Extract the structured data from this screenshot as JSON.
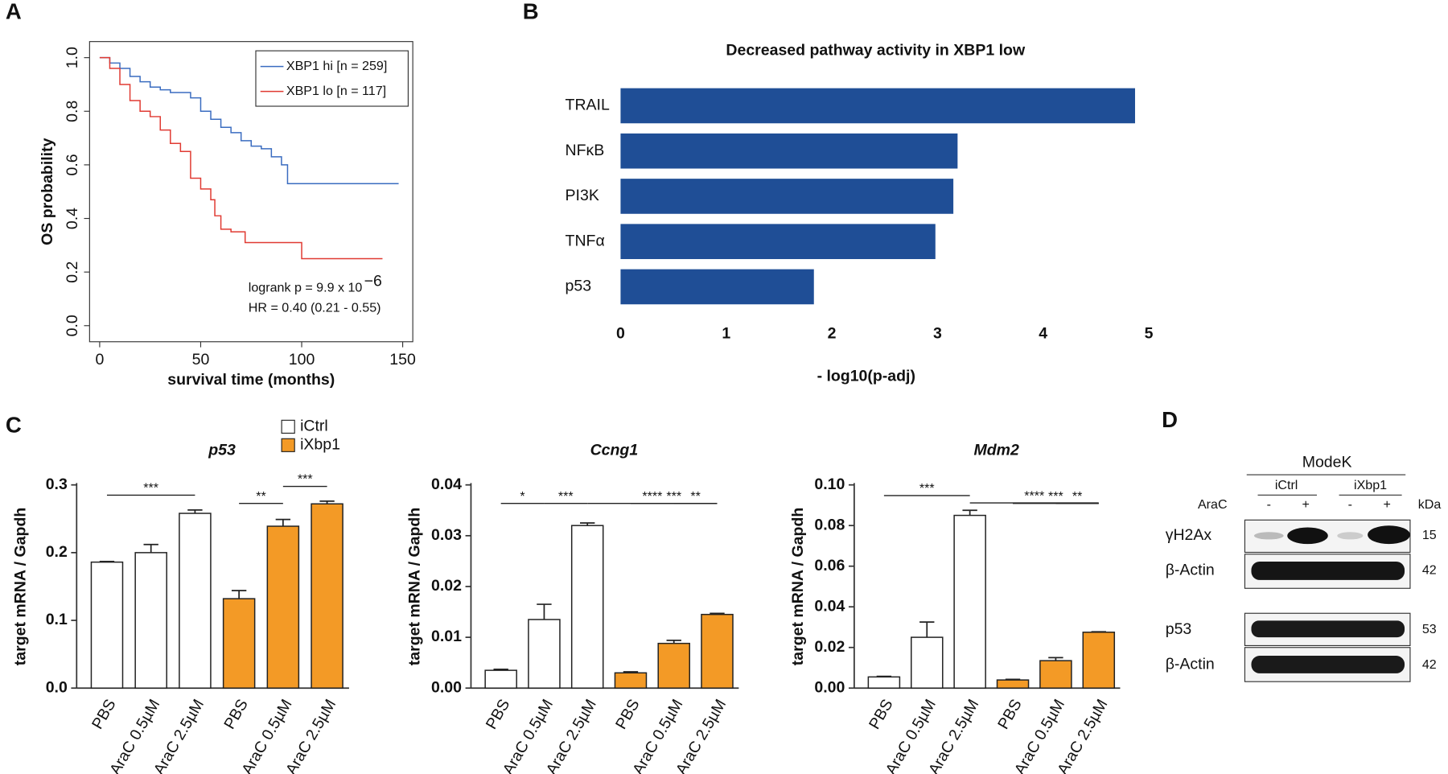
{
  "panel_labels": [
    "A",
    "B",
    "C",
    "D"
  ],
  "chart_data": [
    {
      "type": "line",
      "step": true,
      "xlabel": "survival time (months)",
      "ylabel": "OS probability",
      "xlim": [
        -5,
        155
      ],
      "ylim": [
        -0.06,
        1.06
      ],
      "xticks": [
        0,
        50,
        100,
        150
      ],
      "yticks": [
        {
          "value": 0,
          "label": "0.0"
        },
        {
          "value": 0.2,
          "label": "0.2"
        },
        {
          "value": 0.4,
          "label": "0.4"
        },
        {
          "value": 0.6,
          "label": "0.6"
        },
        {
          "value": 0.8,
          "label": "0.8"
        },
        {
          "value": 1,
          "label": "1.0"
        }
      ],
      "legend": "upper right",
      "series": [
        {
          "name": "XBP1 hi [n = 259]",
          "color": "#3a6cc0",
          "x": [
            0,
            5,
            10,
            15,
            20,
            25,
            30,
            35,
            40,
            45,
            50,
            55,
            60,
            65,
            70,
            75,
            80,
            85,
            90,
            93,
            100,
            120,
            140,
            148
          ],
          "values": [
            1,
            0.98,
            0.96,
            0.93,
            0.91,
            0.89,
            0.88,
            0.87,
            0.87,
            0.85,
            0.8,
            0.77,
            0.74,
            0.72,
            0.69,
            0.67,
            0.66,
            0.63,
            0.6,
            0.53,
            0.53,
            0.53,
            0.53,
            0.53
          ]
        },
        {
          "name": "XBP1 lo [n = 117]",
          "color": "#e03a32",
          "x": [
            0,
            5,
            10,
            15,
            20,
            25,
            30,
            35,
            40,
            45,
            50,
            55,
            57,
            60,
            65,
            72,
            80,
            90,
            100,
            120,
            140
          ],
          "values": [
            1,
            0.96,
            0.9,
            0.84,
            0.8,
            0.78,
            0.73,
            0.68,
            0.65,
            0.55,
            0.51,
            0.47,
            0.41,
            0.36,
            0.35,
            0.31,
            0.31,
            0.31,
            0.25,
            0.25,
            0.25
          ]
        }
      ],
      "annotations": {
        "logrank": "logrank p = 9.9 x 10",
        "exponent": "−6",
        "hr": "HR = 0.40 (0.21 - 0.55)"
      }
    },
    {
      "type": "bar",
      "orientation": "horizontal",
      "title": "Decreased pathway activity in XBP1 low",
      "xlabel": "- log10(p-adj)",
      "categories": [
        "TRAIL",
        "NFκB",
        "PI3K",
        "TNFα",
        "p53"
      ],
      "values": [
        4.87,
        3.19,
        3.15,
        2.98,
        1.83
      ],
      "color": "#1f4e96",
      "xlim": [
        0,
        5
      ],
      "xticks": [
        0,
        1,
        2,
        3,
        4,
        5
      ]
    },
    {
      "type": "bar",
      "title": "p53",
      "ylabel": "target mRNA / Gapdh",
      "categories": [
        "PBS",
        "AraC 0.5µM",
        "AraC 2.5µM"
      ],
      "legend": "upper center",
      "series": [
        {
          "name": "iCtrl",
          "color": "#ffffff",
          "values": [
            0.186,
            0.2,
            0.258
          ],
          "errors": [
            0.001,
            0.012,
            0.005
          ]
        },
        {
          "name": "iXbp1",
          "color": "#f39a26",
          "values": [
            0.132,
            0.239,
            0.272
          ],
          "errors": [
            0.012,
            0.01,
            0.004
          ]
        }
      ],
      "ylim": [
        0,
        0.3
      ],
      "yticks": [
        {
          "value": 0,
          "label": "0.0"
        },
        {
          "value": 0.1,
          "label": "0.1"
        },
        {
          "value": 0.2,
          "label": "0.2"
        },
        {
          "value": 0.3,
          "label": "0.3"
        }
      ],
      "brackets": [
        {
          "bars": [
            0,
            2
          ],
          "label": "***"
        },
        {
          "bars": [
            3,
            4
          ],
          "label": "**"
        },
        {
          "bars": [
            4,
            5
          ],
          "label": "***"
        }
      ]
    },
    {
      "type": "bar",
      "title": "Ccng1",
      "ylabel": "target mRNA / Gapdh",
      "categories": [
        "PBS",
        "AraC 0.5µM",
        "AraC 2.5µM"
      ],
      "series": [
        {
          "color": "#ffffff",
          "values": [
            0.0035,
            0.0135,
            0.032
          ],
          "errors": [
            0.0002,
            0.003,
            0.0005
          ]
        },
        {
          "color": "#f39a26",
          "values": [
            0.003,
            0.0088,
            0.0145
          ],
          "errors": [
            0.0002,
            0.0006,
            0.0002
          ]
        }
      ],
      "ylim": [
        0,
        0.04
      ],
      "yticks": [
        {
          "value": 0,
          "label": "0.00"
        },
        {
          "value": 0.01,
          "label": "0.01"
        },
        {
          "value": 0.02,
          "label": "0.02"
        },
        {
          "value": 0.03,
          "label": "0.03"
        },
        {
          "value": 0.04,
          "label": "0.04"
        }
      ],
      "brackets": [
        {
          "bars": [
            0,
            1
          ],
          "label": "*"
        },
        {
          "bars": [
            1,
            2
          ],
          "label": "***"
        },
        {
          "bars": [
            2,
            5
          ],
          "label": "****"
        },
        {
          "bars": [
            3,
            5
          ],
          "label": "***"
        },
        {
          "bars": [
            4,
            5
          ],
          "label": "**"
        }
      ]
    },
    {
      "type": "bar",
      "title": "Mdm2",
      "ylabel": "target mRNA / Gapdh",
      "categories": [
        "PBS",
        "AraC 0.5µM",
        "AraC 2.5µM"
      ],
      "series": [
        {
          "color": "#ffffff",
          "values": [
            0.0055,
            0.025,
            0.085
          ],
          "errors": [
            0.0003,
            0.0075,
            0.0025
          ]
        },
        {
          "color": "#f39a26",
          "values": [
            0.004,
            0.0135,
            0.0275
          ],
          "errors": [
            0.0003,
            0.0015,
            0.0002
          ]
        }
      ],
      "ylim": [
        0,
        0.1
      ],
      "yticks": [
        {
          "value": 0,
          "label": "0.00"
        },
        {
          "value": 0.02,
          "label": "0.02"
        },
        {
          "value": 0.04,
          "label": "0.04"
        },
        {
          "value": 0.06,
          "label": "0.06"
        },
        {
          "value": 0.08,
          "label": "0.08"
        },
        {
          "value": 0.1,
          "label": "0.10"
        }
      ],
      "brackets": [
        {
          "bars": [
            0,
            2
          ],
          "label": "***"
        },
        {
          "bars": [
            2,
            5
          ],
          "label": "****"
        },
        {
          "bars": [
            3,
            5
          ],
          "label": "***"
        },
        {
          "bars": [
            4,
            5
          ],
          "label": "**"
        }
      ]
    }
  ],
  "blot": {
    "title": "ModeK",
    "groups": [
      "iCtrl",
      "iXbp1"
    ],
    "treatment": "AraC",
    "signs": [
      "-",
      "+",
      "-",
      "+"
    ],
    "unit": "kDa",
    "rows": [
      {
        "protein": "γH2Ax",
        "kda": "15"
      },
      {
        "protein": "β-Actin",
        "kda": "42"
      },
      {
        "protein": "p53",
        "kda": "53"
      },
      {
        "protein": "β-Actin",
        "kda": "42"
      }
    ]
  }
}
